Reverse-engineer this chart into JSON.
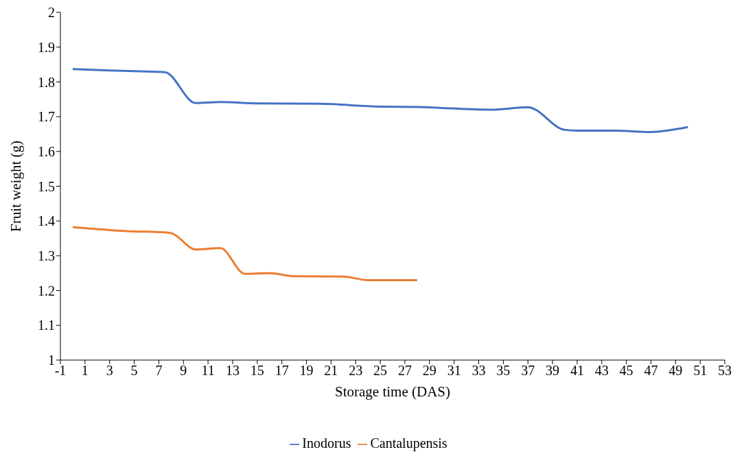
{
  "chart_data": {
    "type": "line",
    "xlabel": "Storage time (DAS)",
    "ylabel": "Fruit weight (g)",
    "xlim": [
      -1,
      53
    ],
    "xticks": [
      -1,
      1,
      3,
      5,
      7,
      9,
      11,
      13,
      15,
      17,
      19,
      21,
      23,
      25,
      27,
      29,
      31,
      33,
      35,
      37,
      39,
      41,
      43,
      45,
      47,
      49,
      51,
      53
    ],
    "ylim": [
      1,
      2
    ],
    "yticks": [
      1,
      1.1,
      1.2,
      1.3,
      1.4,
      1.5,
      1.6,
      1.7,
      1.8,
      1.9,
      2
    ],
    "legend": "bottom",
    "marker": "none",
    "line_style": "solid",
    "series": [
      {
        "name": "Inodorus",
        "color": "#4472c4",
        "x": [
          0,
          3,
          6,
          7.5,
          10,
          12,
          15,
          20,
          25,
          28,
          30,
          34,
          37,
          40,
          41,
          44,
          47,
          50
        ],
        "values": [
          1.837,
          1.833,
          1.83,
          1.828,
          1.739,
          1.742,
          1.738,
          1.737,
          1.729,
          1.728,
          1.725,
          1.72,
          1.727,
          1.662,
          1.66,
          1.66,
          1.656,
          1.67
        ]
      },
      {
        "name": "Cantalupensis",
        "color": "#ed7d31",
        "x": [
          0,
          3,
          5,
          7,
          8,
          10,
          12,
          14,
          16,
          18,
          22,
          24,
          28
        ],
        "values": [
          1.382,
          1.374,
          1.37,
          1.368,
          1.365,
          1.318,
          1.322,
          1.248,
          1.25,
          1.241,
          1.24,
          1.23,
          1.23
        ]
      }
    ]
  }
}
